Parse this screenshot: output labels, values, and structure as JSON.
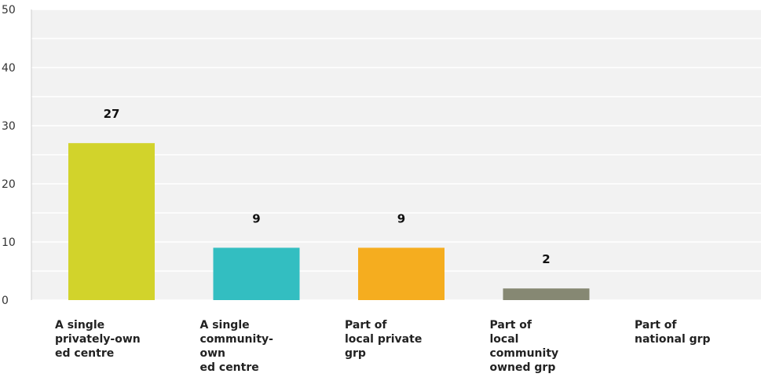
{
  "chart_data": {
    "type": "bar",
    "categories": [
      "A single privately-owned centre",
      "A single community-own ed centre",
      "Part of local private grp",
      "Part of local community owned grp",
      "Part of national grp"
    ],
    "category_label_lines": [
      [
        "A single",
        "privately-own",
        "ed centre"
      ],
      [
        "A single",
        "community-",
        "own",
        "ed centre"
      ],
      [
        "Part of",
        "local private",
        "grp"
      ],
      [
        "Part of",
        "local",
        "community",
        "owned grp"
      ],
      [
        "Part of",
        "national grp"
      ]
    ],
    "values": [
      27,
      9,
      9,
      2,
      0
    ],
    "value_labels": [
      "27",
      "9",
      "9",
      "2",
      ""
    ],
    "colors": [
      "#d2d32b",
      "#33bec1",
      "#f5ad1f",
      "#868873",
      "#cccccc"
    ],
    "title": "",
    "xlabel": "",
    "ylabel": "",
    "ylim": [
      0,
      50
    ],
    "yticks": [
      0,
      10,
      20,
      30,
      40,
      50
    ],
    "grid": "horizontal",
    "background": "#f2f2f2",
    "gridline_color": "#ffffff"
  }
}
